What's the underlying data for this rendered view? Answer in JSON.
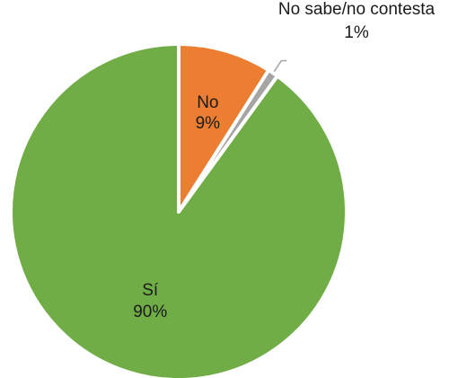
{
  "chart_data": {
    "type": "pie",
    "title": "",
    "legend": "none",
    "series": [
      {
        "slices": [
          {
            "label": "No",
            "value": 9,
            "value_label": "9%",
            "color": "#ed7d31"
          },
          {
            "label": "No sabe/no contesta",
            "value": 1,
            "value_label": "1%",
            "color": "#a5a5a5"
          },
          {
            "label": "Sí",
            "value": 90,
            "value_label": "90%",
            "color": "#70ad47"
          }
        ]
      }
    ]
  }
}
